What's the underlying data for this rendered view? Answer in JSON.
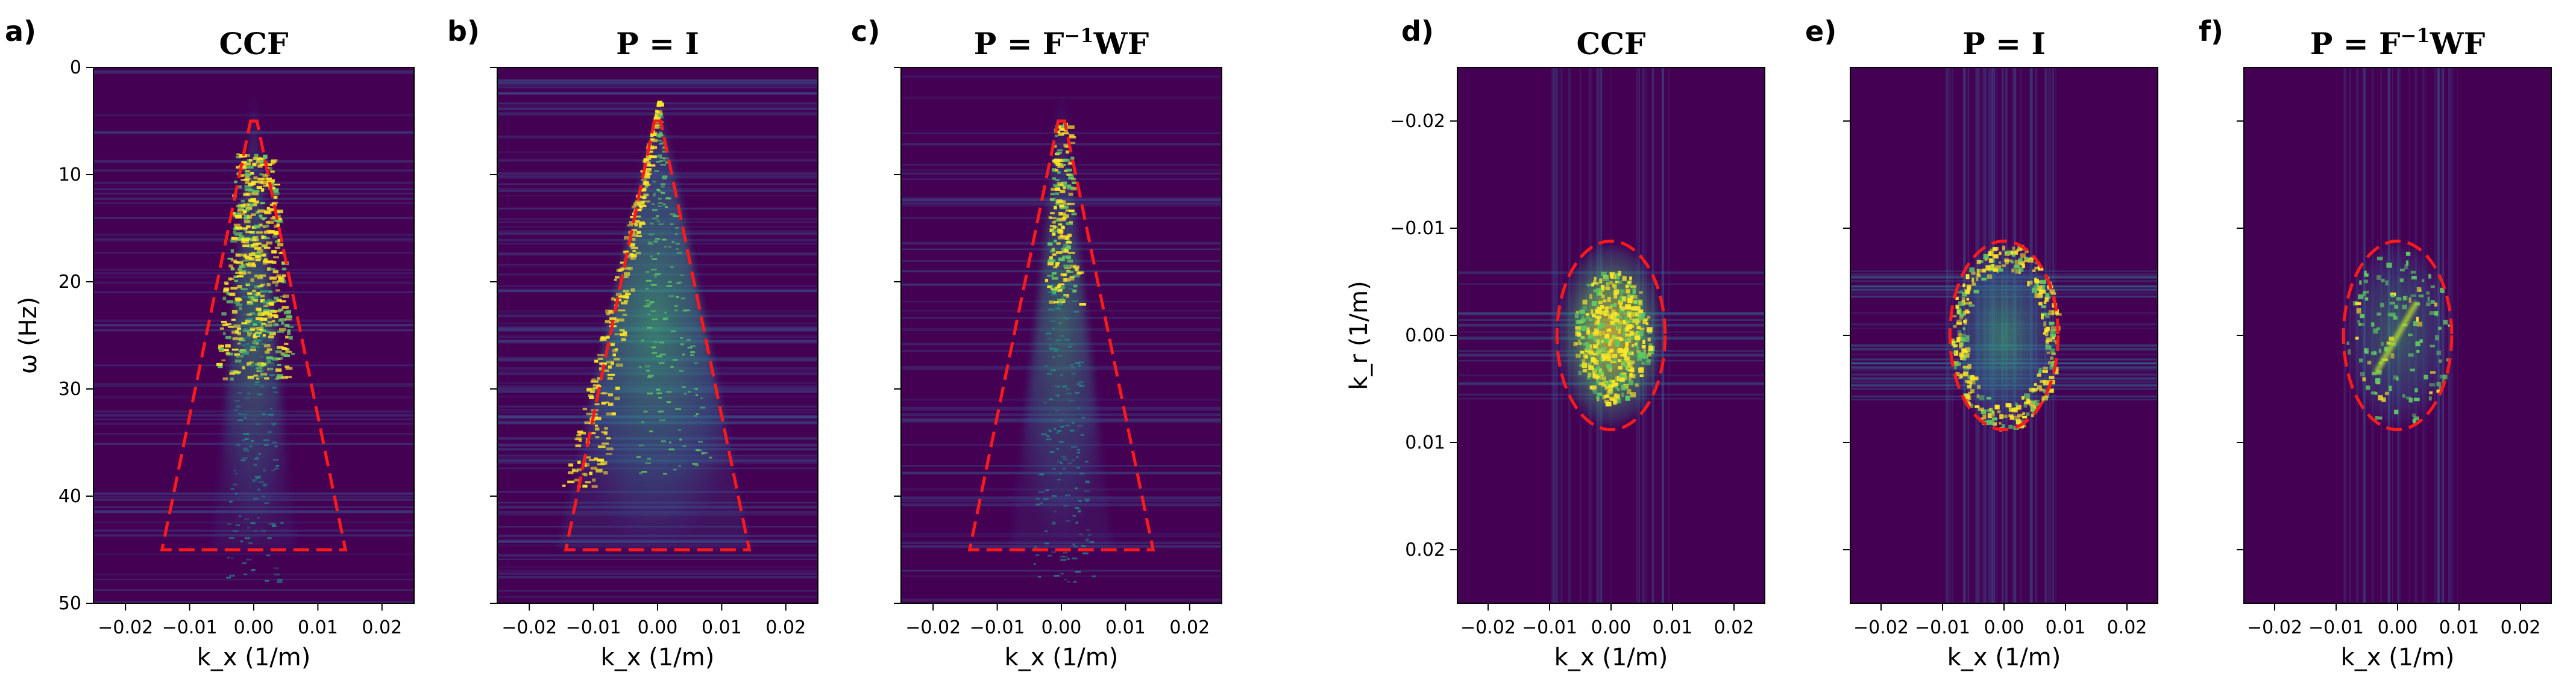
{
  "figure": {
    "colors": {
      "background": "#440154",
      "energy_mid": "#21918c",
      "energy_high": "#fde725",
      "mask_line": "#ff1a1a"
    }
  },
  "chart_data": [
    {
      "type": "heatmap",
      "panel": "a)",
      "title": "CCF",
      "xlabel": "k_x (1/m)",
      "ylabel": "ω (Hz)",
      "xlim": [
        -0.025,
        0.025
      ],
      "ylim": [
        0,
        50
      ],
      "y_inverted": true,
      "x_ticks": [
        -0.02,
        -0.01,
        0.0,
        0.01,
        0.02
      ],
      "x_tick_labels": [
        "−0.02",
        "−0.01",
        "0.00",
        "0.01",
        "0.02"
      ],
      "y_ticks": [
        0,
        10,
        20,
        30,
        40,
        50
      ],
      "y_tick_labels": [
        "0",
        "10",
        "20",
        "30",
        "40",
        "50"
      ],
      "mask": {
        "shape": "trapezoid",
        "points": [
          [
            -0.0005,
            5
          ],
          [
            0.0005,
            5
          ],
          [
            0.0143,
            45
          ],
          [
            -0.0143,
            45
          ]
        ]
      }
    },
    {
      "type": "heatmap",
      "panel": "b)",
      "title": "P = I",
      "xlabel": "k_x (1/m)",
      "xlim": [
        -0.025,
        0.025
      ],
      "ylim": [
        0,
        50
      ],
      "y_inverted": true,
      "x_ticks": [
        -0.02,
        -0.01,
        0.0,
        0.01,
        0.02
      ],
      "x_tick_labels": [
        "−0.02",
        "−0.01",
        "0.00",
        "0.01",
        "0.02"
      ],
      "y_ticks": [
        0,
        10,
        20,
        30,
        40,
        50
      ],
      "mask": {
        "shape": "trapezoid",
        "points": [
          [
            -0.0005,
            5
          ],
          [
            0.0005,
            5
          ],
          [
            0.0143,
            45
          ],
          [
            -0.0143,
            45
          ]
        ]
      }
    },
    {
      "type": "heatmap",
      "panel": "c)",
      "title": "P = F⁻¹WF",
      "xlabel": "k_x (1/m)",
      "xlim": [
        -0.025,
        0.025
      ],
      "ylim": [
        0,
        50
      ],
      "y_inverted": true,
      "x_ticks": [
        -0.02,
        -0.01,
        0.0,
        0.01,
        0.02
      ],
      "x_tick_labels": [
        "−0.02",
        "−0.01",
        "0.00",
        "0.01",
        "0.02"
      ],
      "y_ticks": [
        0,
        10,
        20,
        30,
        40,
        50
      ],
      "mask": {
        "shape": "trapezoid",
        "points": [
          [
            -0.0005,
            5
          ],
          [
            0.0005,
            5
          ],
          [
            0.0143,
            45
          ],
          [
            -0.0143,
            45
          ]
        ]
      }
    },
    {
      "type": "heatmap",
      "panel": "d)",
      "title": "CCF",
      "xlabel": "k_x (1/m)",
      "ylabel": "k_r (1/m)",
      "xlim": [
        -0.025,
        0.025
      ],
      "ylim": [
        -0.025,
        0.025
      ],
      "y_inverted": true,
      "x_ticks": [
        -0.02,
        -0.01,
        0.0,
        0.01,
        0.02
      ],
      "x_tick_labels": [
        "−0.02",
        "−0.01",
        "0.00",
        "0.01",
        "0.02"
      ],
      "y_ticks": [
        -0.02,
        -0.01,
        0.0,
        0.01,
        0.02
      ],
      "y_tick_labels": [
        "−0.02",
        "−0.01",
        "0.00",
        "0.01",
        "0.02"
      ],
      "mask": {
        "shape": "ellipse",
        "center": [
          0.0,
          0.0
        ],
        "radii": [
          0.0088,
          0.0088
        ]
      }
    },
    {
      "type": "heatmap",
      "panel": "e)",
      "title": "P = I",
      "xlabel": "k_x (1/m)",
      "xlim": [
        -0.025,
        0.025
      ],
      "ylim": [
        -0.025,
        0.025
      ],
      "y_inverted": true,
      "x_ticks": [
        -0.02,
        -0.01,
        0.0,
        0.01,
        0.02
      ],
      "x_tick_labels": [
        "−0.02",
        "−0.01",
        "0.00",
        "0.01",
        "0.02"
      ],
      "y_ticks": [
        -0.02,
        -0.01,
        0.0,
        0.01,
        0.02
      ],
      "mask": {
        "shape": "ellipse",
        "center": [
          0.0,
          0.0
        ],
        "radii": [
          0.0088,
          0.0088
        ]
      }
    },
    {
      "type": "heatmap",
      "panel": "f)",
      "title": "P = F⁻¹WF",
      "xlabel": "k_x (1/m)",
      "xlim": [
        -0.025,
        0.025
      ],
      "ylim": [
        -0.025,
        0.025
      ],
      "y_inverted": true,
      "x_ticks": [
        -0.02,
        -0.01,
        0.0,
        0.01,
        0.02
      ],
      "x_tick_labels": [
        "−0.02",
        "−0.01",
        "0.00",
        "0.01",
        "0.02"
      ],
      "y_ticks": [
        -0.02,
        -0.01,
        0.0,
        0.01,
        0.02
      ],
      "mask": {
        "shape": "ellipse",
        "center": [
          0.0,
          0.0
        ],
        "radii": [
          0.0088,
          0.0088
        ]
      }
    }
  ]
}
